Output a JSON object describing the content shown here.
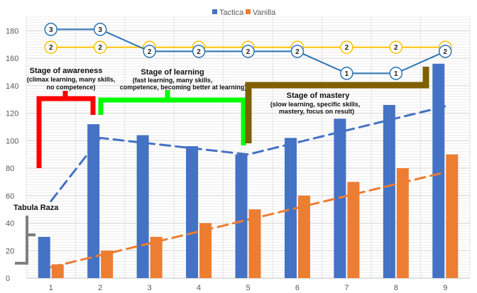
{
  "chart_data": {
    "type": "bar",
    "categories": [
      "1",
      "2",
      "3",
      "4",
      "5",
      "6",
      "7",
      "8",
      "9"
    ],
    "series": [
      {
        "name": "Tactica",
        "color": "#4472C4",
        "values": [
          30,
          112,
          104,
          96,
          90,
          102,
          116,
          126,
          156
        ]
      },
      {
        "name": "Vanilla",
        "color": "#ED7D31",
        "values": [
          10,
          20,
          30,
          40,
          50,
          60,
          70,
          80,
          90
        ]
      }
    ],
    "trendlines": [
      {
        "series": "Tactica",
        "style": "dashed",
        "points": [
          [
            1,
            56
          ],
          [
            2,
            102
          ],
          [
            5,
            90
          ],
          [
            9,
            125
          ]
        ]
      },
      {
        "series": "Vanilla",
        "style": "dashed",
        "points": [
          [
            1,
            8
          ],
          [
            9,
            77
          ]
        ]
      }
    ],
    "ylim": [
      0,
      190
    ],
    "yticks": [
      0,
      20,
      40,
      60,
      80,
      100,
      120,
      140,
      160,
      180
    ],
    "grid": true,
    "legend": {
      "position": "top-center",
      "entries": [
        "Tactica",
        "Vanilla"
      ]
    },
    "marker_lines": [
      {
        "color": "#2E75B6",
        "points": [
          [
            1,
            181,
            "3"
          ],
          [
            2,
            181,
            "3"
          ],
          [
            3,
            165,
            "2"
          ],
          [
            4,
            165,
            "2"
          ],
          [
            5,
            165,
            "2"
          ],
          [
            6,
            165,
            "2"
          ],
          [
            7,
            149,
            "1"
          ],
          [
            8,
            149,
            "1"
          ],
          [
            9,
            165,
            "2"
          ]
        ]
      },
      {
        "color": "#FFC000",
        "points": [
          [
            1,
            168,
            "2"
          ],
          [
            2,
            168,
            "2"
          ],
          [
            3,
            168,
            "2"
          ],
          [
            4,
            168,
            "2"
          ],
          [
            5,
            168,
            "2"
          ],
          [
            6,
            168,
            "2"
          ],
          [
            7,
            168,
            "2"
          ],
          [
            8,
            168,
            "2"
          ],
          [
            9,
            168,
            "2"
          ]
        ]
      }
    ],
    "annotations": [
      {
        "id": "stage-awareness",
        "color": "#FF0000",
        "title": "Stage of awareness",
        "lines": [
          "(climax learning, many skills,",
          "no competence)"
        ]
      },
      {
        "id": "stage-learning",
        "color": "#00FF00",
        "title": "Stage of learning",
        "lines": [
          "(fast learning, many skills,",
          "competence, becoming better at learning)"
        ]
      },
      {
        "id": "stage-mastery",
        "color": "#7F6000",
        "title": "Stage of mastery",
        "lines": [
          "(slow learning, specific skills,",
          "mastery, focus on result)"
        ]
      },
      {
        "id": "tabula-raza",
        "color": "#7F7F7F",
        "title": "Tabula Raza",
        "lines": []
      }
    ]
  }
}
